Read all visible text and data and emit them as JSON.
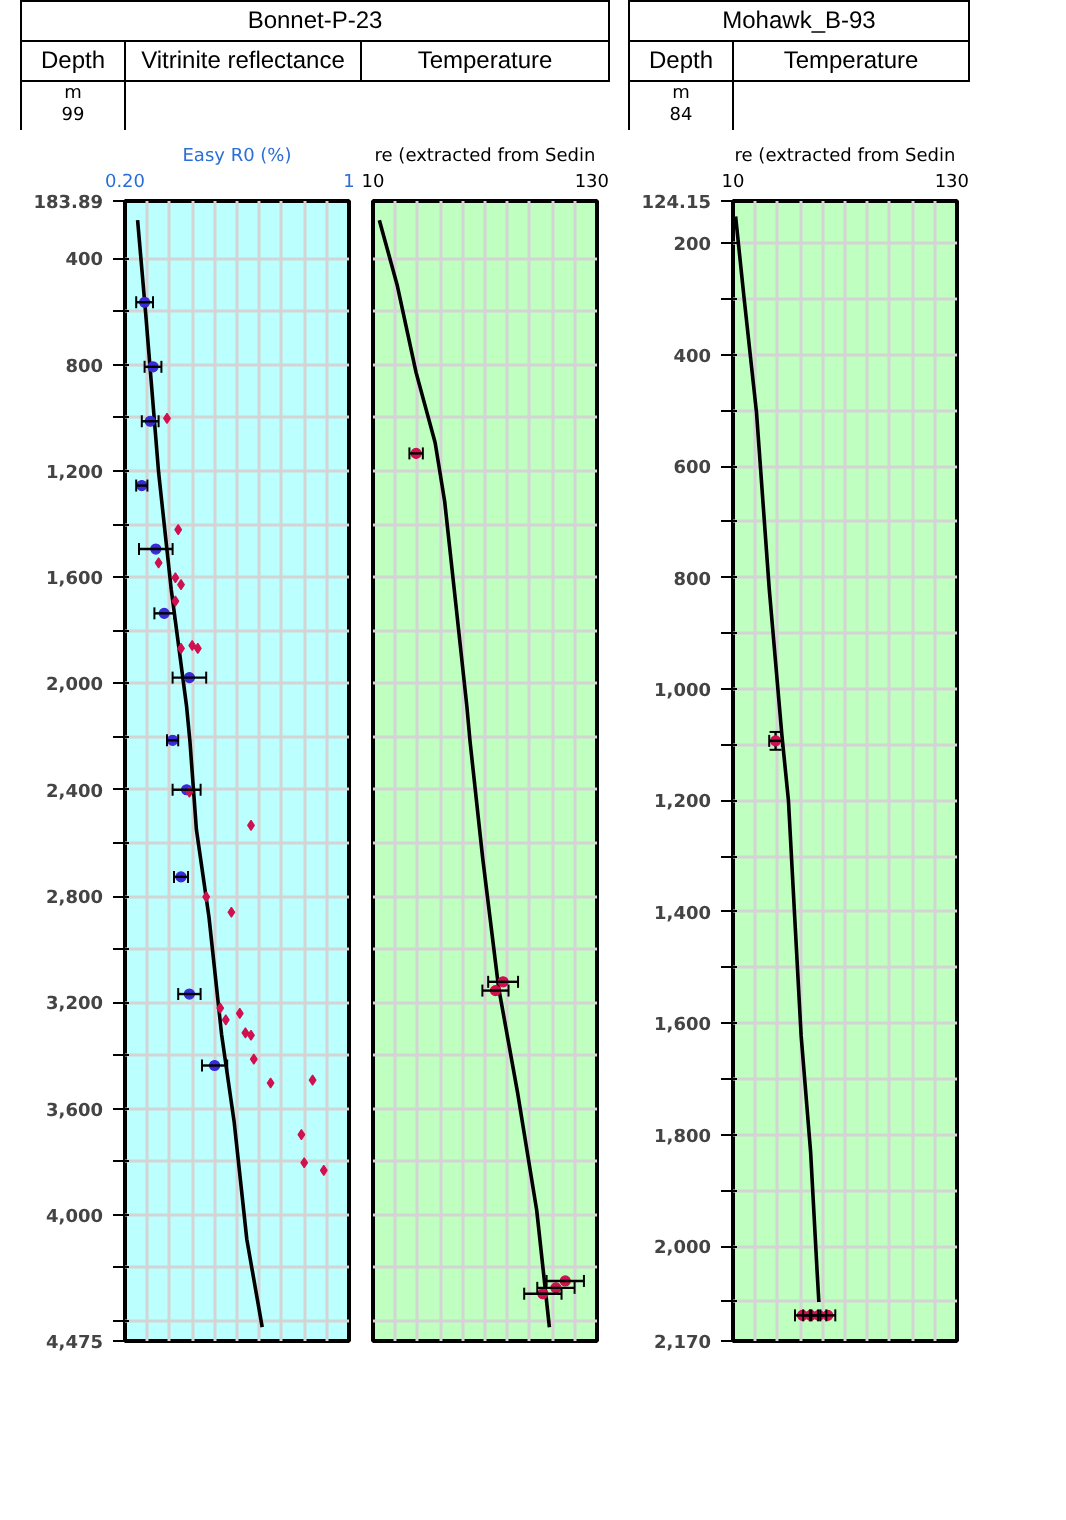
{
  "chart_data": [
    {
      "type": "scatter",
      "title": "Vitrinite reflectance",
      "subtitle": "Bonnet-P-23",
      "ylabel": "Depth",
      "xlabel": "Easy R0 (%)",
      "annotations": [
        "m",
        "99"
      ],
      "xlim": [
        0.2,
        1
      ],
      "xticks": [
        {
          "value": 0.2,
          "label": "0.20"
        },
        {
          "value": 0.28,
          "label": null
        },
        {
          "value": 0.36,
          "label": null
        },
        {
          "value": 0.44,
          "label": null
        },
        {
          "value": 0.52,
          "label": null
        },
        {
          "value": 0.6,
          "label": null
        },
        {
          "value": 0.68,
          "label": null
        },
        {
          "value": 0.76,
          "label": null
        },
        {
          "value": 0.84,
          "label": null
        },
        {
          "value": 0.92,
          "label": null
        },
        1
      ],
      "ylim": [
        4475,
        183.89
      ],
      "yticks": [
        {
          "value": 183.89,
          "label": "183.89"
        },
        400,
        {
          "value": 600,
          "label": null
        },
        800,
        {
          "value": 1000,
          "label": null
        },
        {
          "value": 1200,
          "label": "1,200"
        },
        {
          "value": 1400,
          "label": null
        },
        {
          "value": 1600,
          "label": "1,600"
        },
        {
          "value": 1800,
          "label": null
        },
        {
          "value": 2000,
          "label": "2,000"
        },
        {
          "value": 2200,
          "label": null
        },
        {
          "value": 2400,
          "label": "2,400"
        },
        {
          "value": 2600,
          "label": null
        },
        {
          "value": 2800,
          "label": "2,800"
        },
        {
          "value": 3000,
          "label": null
        },
        {
          "value": 3200,
          "label": "3,200"
        },
        {
          "value": 3400,
          "label": null
        },
        {
          "value": 3600,
          "label": "3,600"
        },
        {
          "value": 3800,
          "label": null
        },
        {
          "value": 4000,
          "label": "4,000"
        },
        {
          "value": 4200,
          "label": null
        },
        {
          "value": 4400,
          "label": null
        },
        {
          "value": 4475,
          "label": "4,475"
        }
      ],
      "grid": true,
      "series": [
        {
          "type": "line",
          "color": "#000000",
          "x": [
            0.245,
            0.274,
            0.32,
            0.365,
            0.42,
            0.432,
            0.455,
            0.5,
            0.545,
            0.59,
            0.635,
            0.69
          ],
          "values": [
            256,
            610,
            1205,
            1645,
            2087,
            2219,
            2550,
            2880,
            3321,
            3652,
            4092,
            4423
          ]
        },
        {
          "color": "#3a2bd6",
          "marker": "circle",
          "x": [
            0.27,
            0.3,
            0.29,
            0.26,
            0.31,
            0.34,
            0.43,
            0.37,
            0.42,
            0.4,
            0.43,
            0.52
          ],
          "values": [
            565,
            808,
            1013,
            1255,
            1494,
            1736,
            1978,
            2214,
            2400,
            2728,
            3169,
            3438
          ],
          "xerrors": [
            0.03,
            0.03,
            0.03,
            0.02,
            0.06,
            0.035,
            0.06,
            0.02,
            0.05,
            0.025,
            0.04,
            0.045
          ]
        },
        {
          "color": "#d0104f",
          "marker": "diamond",
          "x": [
            0.35,
            0.39,
            0.32,
            0.38,
            0.4,
            0.38,
            0.4,
            0.44,
            0.46,
            0.43,
            0.65,
            0.49,
            0.58,
            0.54,
            0.56,
            0.61,
            0.63,
            0.65,
            0.66,
            0.72,
            0.87,
            0.83,
            0.84,
            0.91
          ],
          "values": [
            1002,
            1421,
            1546,
            1602,
            1628,
            1690,
            1868,
            1857,
            1868,
            2409,
            2534,
            2803,
            2861,
            3222,
            3266,
            3242,
            3315,
            3324,
            3414,
            3504,
            3493,
            3698,
            3804,
            3833
          ]
        }
      ]
    },
    {
      "type": "scatter",
      "title": "Temperature",
      "xlabel": "re (extracted from Sedin",
      "xlim": [
        10,
        130
      ],
      "xticks": [
        10,
        {
          "value": 22,
          "label": null
        },
        {
          "value": 34,
          "label": null
        },
        {
          "value": 46,
          "label": null
        },
        {
          "value": 58,
          "label": null
        },
        {
          "value": 70,
          "label": null
        },
        {
          "value": 82,
          "label": null
        },
        {
          "value": 94,
          "label": null
        },
        {
          "value": 106,
          "label": null
        },
        {
          "value": 118,
          "label": null
        },
        130
      ],
      "ylim": [
        4475,
        183.89
      ],
      "yticks": [
        {
          "value": 400,
          "label": null
        },
        {
          "value": 600,
          "label": null
        },
        {
          "value": 800,
          "label": null
        },
        {
          "value": 1000,
          "label": null
        },
        {
          "value": 1200,
          "label": null
        },
        {
          "value": 1400,
          "label": null
        },
        {
          "value": 1600,
          "label": null
        },
        {
          "value": 1800,
          "label": null
        },
        {
          "value": 2000,
          "label": null
        },
        {
          "value": 2200,
          "label": null
        },
        {
          "value": 2400,
          "label": null
        },
        {
          "value": 2600,
          "label": null
        },
        {
          "value": 2800,
          "label": null
        },
        {
          "value": 3000,
          "label": null
        },
        {
          "value": 3200,
          "label": null
        },
        {
          "value": 3400,
          "label": null
        },
        {
          "value": 3600,
          "label": null
        },
        {
          "value": 3800,
          "label": null
        },
        {
          "value": 4000,
          "label": null
        },
        {
          "value": 4200,
          "label": null
        },
        {
          "value": 4400,
          "label": null
        }
      ],
      "tick_labels": "x",
      "grid": true,
      "series": [
        {
          "type": "line",
          "color": "#000000",
          "x": [
            13.4,
            22.9,
            33.1,
            43.3,
            48.4,
            53.5,
            60.3,
            62.0,
            68.8,
            77.3,
            87.5,
            97.7,
            104.5
          ],
          "values": [
            256,
            499,
            830,
            1094,
            1315,
            1645,
            2087,
            2219,
            2660,
            3145,
            3542,
            3983,
            4423
          ]
        },
        {
          "color": "#d0104f",
          "marker": "circle",
          "x": [
            33.1,
            79.7,
            75.6,
            113,
            101,
            108
          ],
          "values": [
            1134,
            3123,
            3156,
            4249,
            4297,
            4275
          ],
          "xerrors": [
            3.6,
            8,
            7,
            10,
            10,
            10
          ]
        }
      ]
    },
    {
      "type": "scatter",
      "title": "Temperature",
      "subtitle": "Mohawk_B-93",
      "ylabel": "Depth",
      "xlabel": "re (extracted from Sedin",
      "annotations": [
        "m",
        "84"
      ],
      "xlim": [
        10,
        130
      ],
      "xticks": [
        10,
        {
          "value": 22,
          "label": null
        },
        {
          "value": 34,
          "label": null
        },
        {
          "value": 46,
          "label": null
        },
        {
          "value": 58,
          "label": null
        },
        {
          "value": 70,
          "label": null
        },
        {
          "value": 82,
          "label": null
        },
        {
          "value": 94,
          "label": null
        },
        {
          "value": 106,
          "label": null
        },
        {
          "value": 118,
          "label": null
        },
        130
      ],
      "ylim": [
        2170,
        124.15
      ],
      "yticks": [
        {
          "value": 124.15,
          "label": "124.15"
        },
        200,
        {
          "value": 300,
          "label": null
        },
        400,
        {
          "value": 500,
          "label": null
        },
        600,
        {
          "value": 700,
          "label": null
        },
        800,
        {
          "value": 900,
          "label": null
        },
        {
          "value": 1000,
          "label": "1,000"
        },
        {
          "value": 1100,
          "label": null
        },
        {
          "value": 1200,
          "label": "1,200"
        },
        {
          "value": 1300,
          "label": null
        },
        {
          "value": 1400,
          "label": "1,400"
        },
        {
          "value": 1500,
          "label": null
        },
        {
          "value": 1600,
          "label": "1,600"
        },
        {
          "value": 1700,
          "label": null
        },
        {
          "value": 1800,
          "label": "1,800"
        },
        {
          "value": 1900,
          "label": null
        },
        {
          "value": 2000,
          "label": "2,000"
        },
        {
          "value": 2100,
          "label": null
        },
        {
          "value": 2170,
          "label": "2,170"
        }
      ],
      "grid": true,
      "series": [
        {
          "type": "line",
          "color": "#000000",
          "x": [
            11.4,
            15.8,
            22.6,
            29.4,
            36.2,
            39.7,
            43.1,
            46.5,
            51.6,
            55.0,
            56.0
          ],
          "values": [
            152,
            294,
            504,
            820,
            1083,
            1200,
            1412,
            1622,
            1832,
            2042,
            2100
          ]
        },
        {
          "color": "#d0104f",
          "marker": "circle",
          "x": [
            32.8,
            47.2,
            51.6,
            56.0,
            60.8
          ],
          "values": [
            1093,
            2124,
            2124,
            2124,
            2124
          ],
          "xerrors": [
            3.4,
            4,
            4,
            4,
            4
          ],
          "errors": [
            16,
            null,
            null,
            null,
            null
          ]
        }
      ]
    }
  ]
}
